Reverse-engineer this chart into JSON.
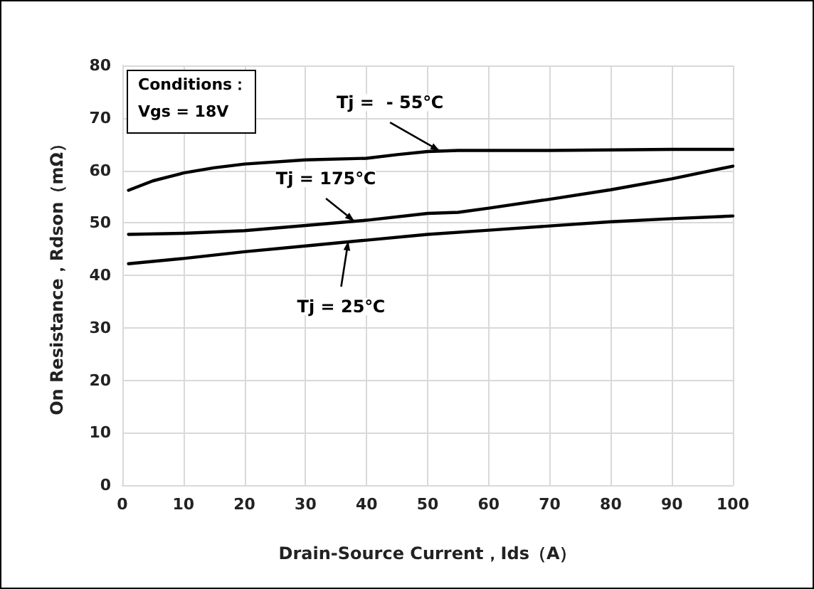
{
  "chart_data": {
    "type": "line",
    "xlabel": "Drain-Source Current，Ids（A）",
    "ylabel": "On Resistance，Rdson（mΩ）",
    "xlim": [
      0,
      100
    ],
    "xticks": [
      0,
      10,
      20,
      30,
      40,
      50,
      60,
      70,
      80,
      90,
      100
    ],
    "ylim": [
      0,
      80
    ],
    "yticks": [
      0,
      10,
      20,
      30,
      40,
      50,
      60,
      70,
      80
    ],
    "grid": true,
    "marker": "none",
    "line_style": "solid",
    "series": [
      {
        "color": "#000000",
        "x": [
          1,
          5,
          10,
          15,
          20,
          30,
          40,
          45,
          50,
          55,
          60,
          70,
          80,
          90,
          100
        ],
        "values": [
          56.2,
          58,
          59.5,
          60.5,
          61.2,
          62,
          62.3,
          63,
          63.6,
          63.8,
          63.8,
          63.8,
          63.9,
          64,
          64
        ]
      },
      {
        "color": "#000000",
        "x": [
          1,
          10,
          20,
          30,
          40,
          50,
          55,
          60,
          70,
          80,
          90,
          100
        ],
        "values": [
          47.8,
          48,
          48.5,
          49.5,
          50.5,
          51.8,
          52,
          52.8,
          54.5,
          56.3,
          58.4,
          60.8
        ]
      },
      {
        "color": "#000000",
        "x": [
          1,
          10,
          20,
          30,
          40,
          50,
          60,
          70,
          80,
          90,
          100
        ],
        "values": [
          42.2,
          43.2,
          44.5,
          45.6,
          46.7,
          47.8,
          48.6,
          49.4,
          50.2,
          50.8,
          51.3
        ]
      }
    ],
    "annotations": [
      "Conditions：",
      "Vgs = 18V",
      {
        "text": "Tj =  - 55℃",
        "x": 52,
        "y": 63.7
      },
      {
        "text": "Tj = 175℃",
        "x": 38,
        "y": 50.3
      },
      {
        "text": "Tj = 25℃",
        "x": 37,
        "y": 46.5
      }
    ]
  }
}
